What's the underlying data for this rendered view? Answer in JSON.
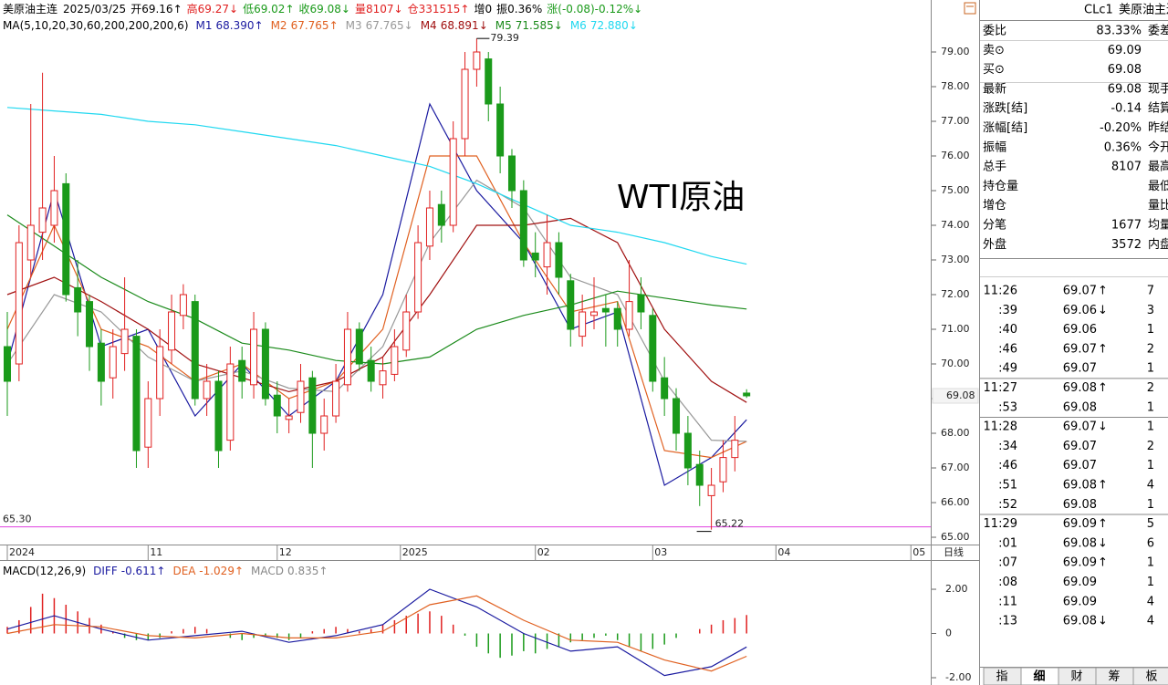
{
  "header": {
    "symbol": "美原油主连",
    "date": "2025/03/25",
    "items": [
      {
        "label": "开",
        "value": "69.16",
        "arrow": "↑",
        "color": "#000000"
      },
      {
        "label": "高",
        "value": "69.27",
        "arrow": "↓",
        "color": "#e02020"
      },
      {
        "label": "低",
        "value": "69.02",
        "arrow": "↑",
        "color": "#1a9a1a"
      },
      {
        "label": "收",
        "value": "69.08",
        "arrow": "↓",
        "color": "#1a9a1a"
      },
      {
        "label": "量",
        "value": "8107",
        "arrow": "↓",
        "color": "#e02020"
      },
      {
        "label": "仓",
        "value": "331515",
        "arrow": "↑",
        "color": "#e02020"
      },
      {
        "label": "增",
        "value": "0",
        "color": "#000000"
      },
      {
        "label": "振",
        "value": "0.36%",
        "color": "#000000"
      },
      {
        "label": "涨",
        "value": "(-0.08)-0.12%",
        "arrow": "↓",
        "color": "#1a9a1a"
      }
    ]
  },
  "chart_data": [
    {
      "type": "candlestick",
      "title": "WTI原油",
      "ma_title": "MA(5,10,20,30,60,200,200,200,6)",
      "up_color": "#e02020",
      "down_color": "#1a9a1a",
      "ylim": [
        64.79,
        80.5
      ],
      "yticks": [
        {
          "value": 79,
          "label": "79.00"
        },
        {
          "value": 78,
          "label": "78.00"
        },
        {
          "value": 77,
          "label": "77.00"
        },
        {
          "value": 76,
          "label": "76.00"
        },
        {
          "value": 75,
          "label": "75.00"
        },
        {
          "value": 74,
          "label": "74.00"
        },
        {
          "value": 73,
          "label": "73.00"
        },
        {
          "value": 72,
          "label": "72.00"
        },
        {
          "value": 71,
          "label": "71.00"
        },
        {
          "value": 70,
          "label": "70.00"
        },
        {
          "value": 69,
          "label": "69.00"
        },
        {
          "value": 68,
          "label": "68.00"
        },
        {
          "value": 67,
          "label": "67.00"
        },
        {
          "value": 66,
          "label": "66.00"
        },
        {
          "value": 65,
          "label": "65.00"
        }
      ],
      "xticks": [
        {
          "value": 0,
          "label": "2024"
        },
        {
          "value": 12,
          "label": "11"
        },
        {
          "value": 23,
          "label": "12"
        },
        {
          "value": 33.5,
          "label": "2025"
        },
        {
          "value": 45,
          "label": "02"
        },
        {
          "value": 55,
          "label": "03"
        },
        {
          "value": 65.5,
          "label": "04"
        },
        {
          "value": 77,
          "label": "05"
        }
      ],
      "candles": [
        [
          70.5,
          71.5,
          68.5,
          69.5
        ],
        [
          70.0,
          74.0,
          69.5,
          73.5
        ],
        [
          73.0,
          77.5,
          72.5,
          74.0
        ],
        [
          73.8,
          78.4,
          73.0,
          74.5
        ],
        [
          74.0,
          76.0,
          73.5,
          75.0
        ],
        [
          75.2,
          75.5,
          71.8,
          72.0
        ],
        [
          72.2,
          73.0,
          70.8,
          71.5
        ],
        [
          71.8,
          72.0,
          69.8,
          70.5
        ],
        [
          70.6,
          71.0,
          68.8,
          69.5
        ],
        [
          69.6,
          71.0,
          69.0,
          70.5
        ],
        [
          70.3,
          72.5,
          69.8,
          71.0
        ],
        [
          70.8,
          71.0,
          67.0,
          67.5
        ],
        [
          67.6,
          69.5,
          67.0,
          69.0
        ],
        [
          69.0,
          71.0,
          68.5,
          70.5
        ],
        [
          70.4,
          72.0,
          70.0,
          71.5
        ],
        [
          71.4,
          72.3,
          71.0,
          72.0
        ],
        [
          71.8,
          72.0,
          68.8,
          69.0
        ],
        [
          69.0,
          70.0,
          68.5,
          69.5
        ],
        [
          69.5,
          69.8,
          67.0,
          67.5
        ],
        [
          67.8,
          70.5,
          67.5,
          70.0
        ],
        [
          70.1,
          70.5,
          69.0,
          69.5
        ],
        [
          69.4,
          71.5,
          69.0,
          71.0
        ],
        [
          71.0,
          71.2,
          68.8,
          69.0
        ],
        [
          69.1,
          69.5,
          68.0,
          68.5
        ],
        [
          68.4,
          69.0,
          68.0,
          68.5
        ],
        [
          68.6,
          70.0,
          68.3,
          69.5
        ],
        [
          69.6,
          69.8,
          67.0,
          68.0
        ],
        [
          68.0,
          69.0,
          67.5,
          68.5
        ],
        [
          68.5,
          70.0,
          68.3,
          69.5
        ],
        [
          69.4,
          71.5,
          69.2,
          71.0
        ],
        [
          71.0,
          71.2,
          69.8,
          70.0
        ],
        [
          70.1,
          70.5,
          69.2,
          69.5
        ],
        [
          69.4,
          70.2,
          69.0,
          69.8
        ],
        [
          69.7,
          71.0,
          69.5,
          70.5
        ],
        [
          70.4,
          72.0,
          70.2,
          71.5
        ],
        [
          71.5,
          74.0,
          71.3,
          73.5
        ],
        [
          73.4,
          75.0,
          73.0,
          74.5
        ],
        [
          74.6,
          75.0,
          73.5,
          74.0
        ],
        [
          74.0,
          77.0,
          73.8,
          76.5
        ],
        [
          76.5,
          79.0,
          76.0,
          78.5
        ],
        [
          78.5,
          79.39,
          78.0,
          79.0
        ],
        [
          78.8,
          79.0,
          77.0,
          77.5
        ],
        [
          77.5,
          78.0,
          75.5,
          76.0
        ],
        [
          76.0,
          76.2,
          74.5,
          75.0
        ],
        [
          75.0,
          75.3,
          72.8,
          73.0
        ],
        [
          73.2,
          73.8,
          72.5,
          73.0
        ],
        [
          72.8,
          74.3,
          72.0,
          73.5
        ],
        [
          73.5,
          73.8,
          72.0,
          72.5
        ],
        [
          72.4,
          72.6,
          70.5,
          71.0
        ],
        [
          70.8,
          72.0,
          70.5,
          71.5
        ],
        [
          71.4,
          72.5,
          71.0,
          71.5
        ],
        [
          71.6,
          72.0,
          70.5,
          71.5
        ],
        [
          71.6,
          71.8,
          70.5,
          71.0
        ],
        [
          71.0,
          73.0,
          70.8,
          71.8
        ],
        [
          72.0,
          72.5,
          71.0,
          71.5
        ],
        [
          71.4,
          71.6,
          69.2,
          69.5
        ],
        [
          69.6,
          70.2,
          68.5,
          69.0
        ],
        [
          69.0,
          69.3,
          67.5,
          68.0
        ],
        [
          68.0,
          68.5,
          66.5,
          67.0
        ],
        [
          67.1,
          67.5,
          65.9,
          66.5
        ],
        [
          66.2,
          67.0,
          65.22,
          66.5
        ],
        [
          66.6,
          67.8,
          66.3,
          67.3
        ],
        [
          67.3,
          68.5,
          66.9,
          67.8
        ],
        [
          69.16,
          69.27,
          69.02,
          69.08
        ]
      ],
      "ma_index": [
        0,
        4,
        8,
        12,
        16,
        20,
        24,
        28,
        32,
        36,
        40,
        44,
        48,
        52,
        56,
        60,
        63
      ],
      "ma": [
        {
          "name": "M1",
          "value_label": "68.390",
          "arrow": "↑",
          "color": "#1a1aa0",
          "values": [
            70,
            75,
            70.5,
            71,
            68.5,
            70,
            68.5,
            69.5,
            72,
            77.5,
            75,
            73.5,
            71,
            71.5,
            66.5,
            67.3,
            68.39
          ]
        },
        {
          "name": "M2",
          "value_label": "67.765",
          "arrow": "↑",
          "color": "#e06020",
          "values": [
            71,
            74,
            71,
            70.5,
            69.5,
            70,
            69,
            69.5,
            71,
            76,
            76,
            73.5,
            71.5,
            71.8,
            67.5,
            67.3,
            67.765
          ]
        },
        {
          "name": "M3",
          "value_label": "67.765",
          "arrow": "↓",
          "color": "#999999",
          "values": [
            70,
            72,
            71.5,
            70.2,
            69.5,
            69.8,
            69.3,
            69.2,
            70.5,
            73.5,
            75.3,
            74.5,
            72.5,
            72,
            69.5,
            67.8,
            67.765
          ]
        },
        {
          "name": "M4",
          "value_label": "68.891",
          "arrow": "↓",
          "color": "#a01010",
          "values": [
            72,
            72.5,
            71.8,
            71,
            70,
            69.6,
            69.2,
            69.5,
            70.2,
            72,
            74,
            74,
            74.2,
            73.5,
            71,
            69.5,
            68.891
          ]
        },
        {
          "name": "M5",
          "value_label": "71.585",
          "arrow": "↓",
          "color": "#1a8a1a",
          "values": [
            74.3,
            73.4,
            72.5,
            71.8,
            71.3,
            70.6,
            70.4,
            70.1,
            70,
            70.2,
            71,
            71.4,
            71.7,
            72.1,
            71.9,
            71.7,
            71.585
          ]
        },
        {
          "name": "M6",
          "value_label": "72.880",
          "arrow": "↓",
          "color": "#20d8f0",
          "values": [
            77.4,
            77.3,
            77.2,
            77,
            76.9,
            76.7,
            76.5,
            76.3,
            76,
            75.7,
            75.2,
            74.6,
            74,
            73.8,
            73.5,
            73.1,
            72.88
          ]
        }
      ],
      "high_label": 79.39,
      "low_label": 65.22,
      "reference_line": {
        "value": 65.3,
        "label": "65.30",
        "color": "#e040e0"
      },
      "last_price": 69.08
    },
    {
      "type": "macd",
      "title": "MACD(12,26,9)",
      "ylim": [
        -2.33,
        3.28
      ],
      "yticks": [
        {
          "value": 2,
          "label": "2.00"
        },
        0,
        {
          "value": -2,
          "label": "-2.00"
        }
      ],
      "up_color": "#e02020",
      "down_color": "#1a9a1a",
      "diff": {
        "name": "DIFF",
        "value_label": "-0.611",
        "arrow": "↑",
        "color": "#1a1aa0",
        "values": [
          0.2,
          0.8,
          0.2,
          -0.3,
          -0.1,
          0.1,
          -0.4,
          -0.1,
          0.4,
          2.0,
          1.2,
          0.0,
          -0.8,
          -0.6,
          -1.9,
          -1.5,
          -0.611
        ]
      },
      "dea": {
        "name": "DEA",
        "value_label": "-1.029",
        "arrow": "↑",
        "color": "#e06020",
        "values": [
          0.0,
          0.4,
          0.3,
          -0.1,
          -0.2,
          0.0,
          -0.2,
          -0.2,
          0.1,
          1.3,
          1.7,
          0.6,
          -0.3,
          -0.4,
          -1.2,
          -1.7,
          -1.029
        ]
      },
      "histogram": {
        "name": "MACD",
        "value_label": "0.835",
        "arrow": "↑",
        "color": "#888888",
        "values": [
          0.3,
          0.6,
          1.2,
          1.8,
          1.6,
          1.3,
          1.0,
          0.7,
          0.4,
          0.1,
          -0.2,
          -0.3,
          -0.3,
          -0.2,
          0.1,
          0.2,
          0.3,
          0.2,
          0.0,
          -0.2,
          -0.3,
          -0.2,
          -0.1,
          -0.2,
          -0.3,
          -0.2,
          0.1,
          0.2,
          0.3,
          0.2,
          0.1,
          0.2,
          0.4,
          0.6,
          0.8,
          0.9,
          1.0,
          0.8,
          0.4,
          -0.1,
          -0.6,
          -0.9,
          -1.1,
          -1.0,
          -0.8,
          -0.9,
          -0.7,
          -0.6,
          -0.4,
          -0.3,
          -0.2,
          -0.1,
          -0.3,
          -0.6,
          -0.8,
          -0.7,
          -0.5,
          -0.2,
          0.0,
          0.2,
          0.4,
          0.6,
          0.7,
          0.835
        ]
      }
    }
  ],
  "period": "日线",
  "quote_panel": {
    "code": "CLc1",
    "name": "美原油主连(",
    "rows": [
      {
        "label": "委比",
        "value": "83.33%",
        "color": "#e02020",
        "label2": "委差"
      },
      {
        "label": "卖⊙",
        "value": "69.09",
        "color": "#1a9a1a"
      },
      {
        "label": "买⊙",
        "value": "69.08",
        "color": "#1a9a1a"
      },
      {
        "label": "最新",
        "value": "69.08",
        "color": "#1a9a1a",
        "label2": "现手"
      },
      {
        "label": "涨跌[结]",
        "value": "-0.14",
        "color": "#1a9a1a",
        "label2": "结算价"
      },
      {
        "label": "涨幅[结]",
        "value": "-0.20%",
        "color": "#1a9a1a",
        "label2": "昨结算"
      },
      {
        "label": "振幅",
        "value": "0.36%",
        "color": "#000000",
        "label2": "今开"
      },
      {
        "label": "总手",
        "value": "8107",
        "color": "#000000",
        "label2": "最高"
      },
      {
        "label": "持仓量",
        "label2": "最低"
      },
      {
        "label": "增仓",
        "label2": "量比"
      },
      {
        "label": "分笔",
        "value": "1677",
        "color": "#000000",
        "label2": "均量"
      },
      {
        "label": "外盘",
        "value": "3572",
        "color": "#e02020",
        "label2": "内盘"
      }
    ]
  },
  "ticks": [
    [
      {
        "time": "11:26",
        "price": "69.07",
        "arrow": "↑",
        "volume": "7",
        "color": "#1a9a1a"
      },
      {
        "time": ":39",
        "price": "69.06",
        "arrow": "↓",
        "volume": "3",
        "color": "#1a9a1a"
      },
      {
        "time": ":40",
        "price": "69.06",
        "volume": "1",
        "color": "#1a9a1a"
      },
      {
        "time": ":46",
        "price": "69.07",
        "arrow": "↑",
        "volume": "2",
        "color": "#e02020"
      },
      {
        "time": ":49",
        "price": "69.07",
        "volume": "1",
        "color": "#e02020"
      }
    ],
    [
      {
        "time": "11:27",
        "price": "69.08",
        "arrow": "↑",
        "volume": "2",
        "color": "#e02020"
      },
      {
        "time": ":53",
        "price": "69.08",
        "volume": "1",
        "color": "#1a9a1a"
      }
    ],
    [
      {
        "time": "11:28",
        "price": "69.07",
        "arrow": "↓",
        "volume": "1",
        "color": "#1a9a1a"
      },
      {
        "time": ":34",
        "price": "69.07",
        "volume": "2",
        "color": "#1a9a1a"
      },
      {
        "time": ":46",
        "price": "69.07",
        "volume": "1",
        "color": "#1a9a1a"
      },
      {
        "time": ":51",
        "price": "69.08",
        "arrow": "↑",
        "volume": "4",
        "color": "#e02020"
      },
      {
        "time": ":52",
        "price": "69.08",
        "volume": "1",
        "color": "#e02020"
      }
    ],
    [
      {
        "time": "11:29",
        "price": "69.09",
        "arrow": "↑",
        "volume": "5",
        "color": "#e02020"
      },
      {
        "time": ":01",
        "price": "69.08",
        "arrow": "↓",
        "volume": "6",
        "color": "#1a9a1a"
      },
      {
        "time": ":07",
        "price": "69.09",
        "arrow": "↑",
        "volume": "1",
        "color": "#e02020"
      },
      {
        "time": ":08",
        "price": "69.09",
        "volume": "1",
        "color": "#e02020"
      },
      {
        "time": ":11",
        "price": "69.09",
        "volume": "4",
        "color": "#1a9a1a"
      },
      {
        "time": ":13",
        "price": "69.08",
        "arrow": "↓",
        "volume": "4",
        "color": "#1a9a1a"
      }
    ]
  ],
  "tabs": {
    "items": [
      "指",
      "细",
      "财",
      "筹",
      "板"
    ],
    "selected": 1
  }
}
